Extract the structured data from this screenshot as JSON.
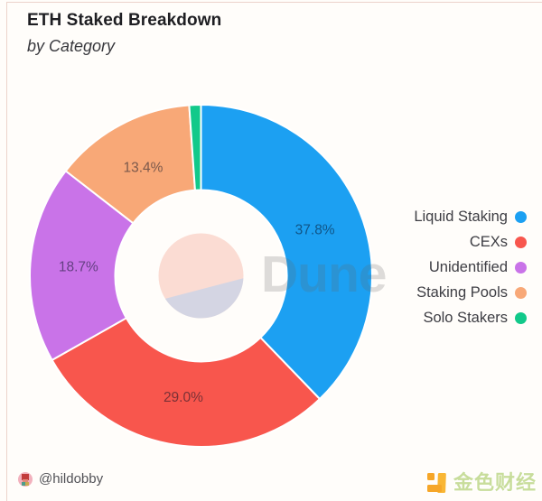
{
  "header": {
    "title": "ETH Staked Breakdown",
    "subtitle": "by Category"
  },
  "chart_data": {
    "type": "pie",
    "subtype": "donut",
    "title": "ETH Staked Breakdown",
    "subtitle": "by Category",
    "unit": "%",
    "slices": [
      {
        "label": "Liquid Staking",
        "value": 37.8,
        "color": "#1CA0F2"
      },
      {
        "label": "CEXs",
        "value": 29.0,
        "color": "#F8564D"
      },
      {
        "label": "Unidentified",
        "value": 18.7,
        "color": "#C973E8"
      },
      {
        "label": "Staking Pools",
        "value": 13.4,
        "color": "#F8A877"
      },
      {
        "label": "Solo Stakers",
        "value": 1.1,
        "color": "#12C98A"
      }
    ],
    "visible_slice_labels": [
      "37.8%",
      "29.0%",
      "18.7%",
      "13.4%"
    ],
    "legend_position": "right",
    "label_format": "one-decimal-percent",
    "min_value_for_label": 5
  },
  "watermarks": {
    "center": "Dune",
    "bottom_right": "金色财经"
  },
  "attribution": {
    "handle": "@hildobby"
  },
  "colors": {
    "frame_border": "#ecd3cb",
    "inner_circle_top": "#FBDCD3",
    "inner_circle_bottom": "#D4D5E3",
    "slice_label_text": "rgba(5,15,35,0.52)",
    "legend_text": "#3d3d43"
  }
}
